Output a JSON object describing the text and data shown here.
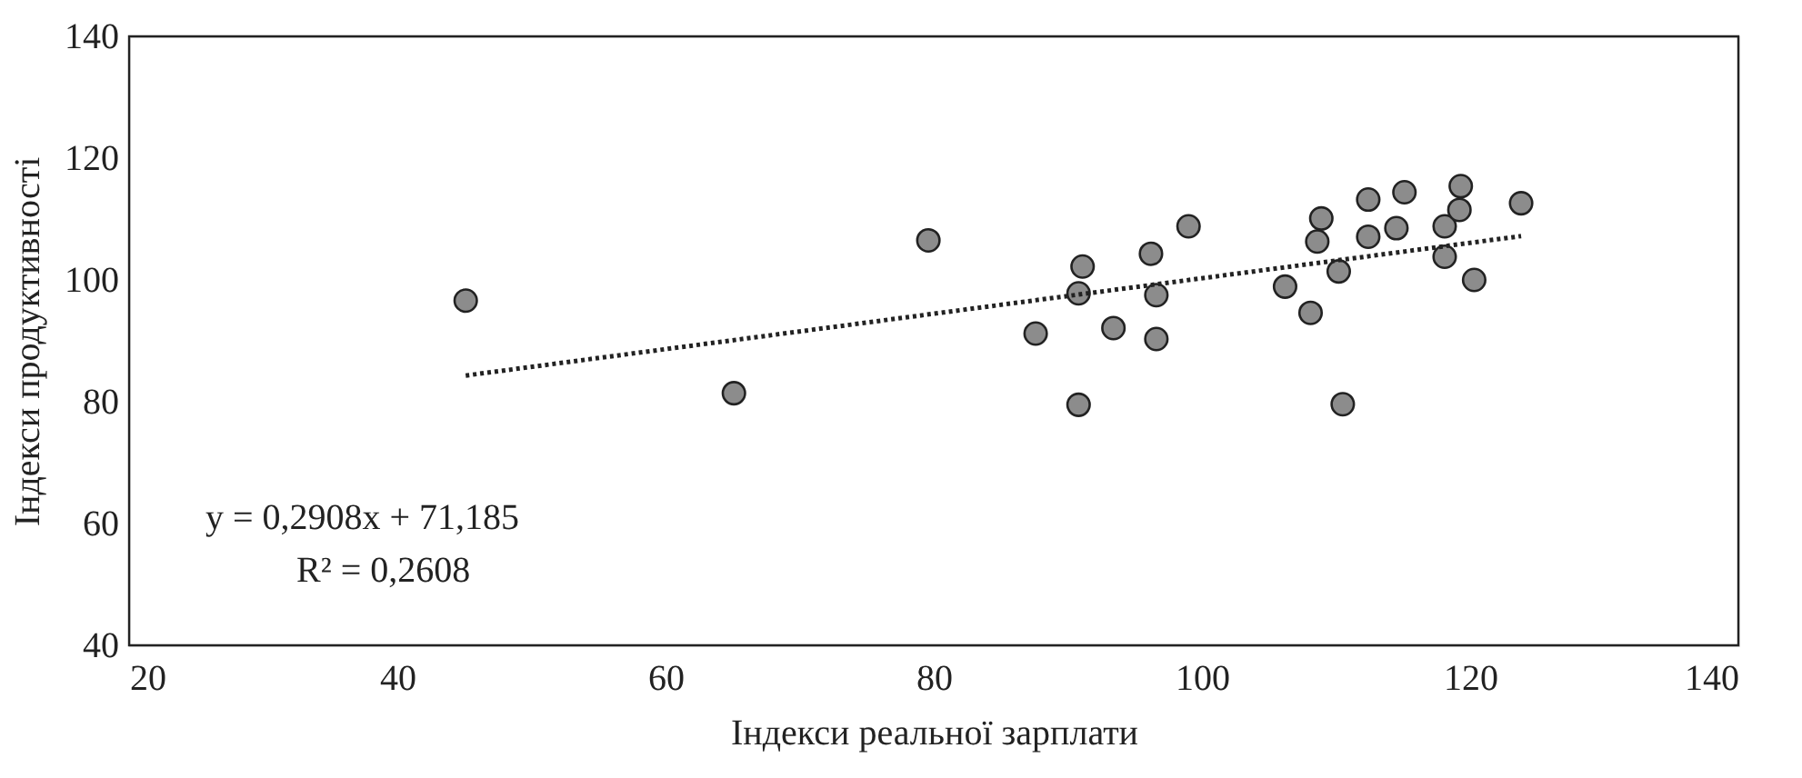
{
  "chart_data": {
    "type": "scatter",
    "xlabel": "Індекси реальної зарплати",
    "ylabel": "Індекси продуктивності",
    "xlim": [
      20,
      140
    ],
    "xticks": [
      20,
      40,
      60,
      80,
      100,
      120,
      140
    ],
    "ylim": [
      40,
      140
    ],
    "yticks": [
      40,
      60,
      80,
      100,
      120,
      140
    ],
    "grid": false,
    "annotations": [
      "y = 0,2908x + 71,185",
      "R² = 0,2608"
    ],
    "series": [
      {
        "marker": "circle",
        "color": "#8c8c8c",
        "x": [
          45.1,
          65.1,
          79.6,
          87.6,
          90.8,
          91.1,
          90.8,
          93.4,
          96.2,
          96.6,
          96.6,
          99.0,
          106.2,
          108.1,
          108.6,
          108.9,
          110.2,
          110.5,
          112.4,
          112.4,
          114.5,
          115.1,
          118.1,
          118.1,
          119.2,
          119.3,
          120.3,
          123.8
        ],
        "values": [
          96.6,
          81.4,
          106.5,
          91.2,
          97.8,
          102.2,
          79.5,
          92.1,
          104.3,
          97.5,
          90.3,
          108.8,
          98.9,
          94.6,
          106.3,
          110.1,
          101.4,
          79.6,
          113.2,
          107.1,
          108.5,
          114.4,
          108.8,
          103.8,
          111.5,
          115.4,
          100.0,
          112.6
        ]
      },
      {
        "type": "line",
        "color": "#222222",
        "line_style": "dotted",
        "x": [
          45.1,
          123.8
        ],
        "values": [
          84.3,
          107.2
        ]
      }
    ]
  }
}
